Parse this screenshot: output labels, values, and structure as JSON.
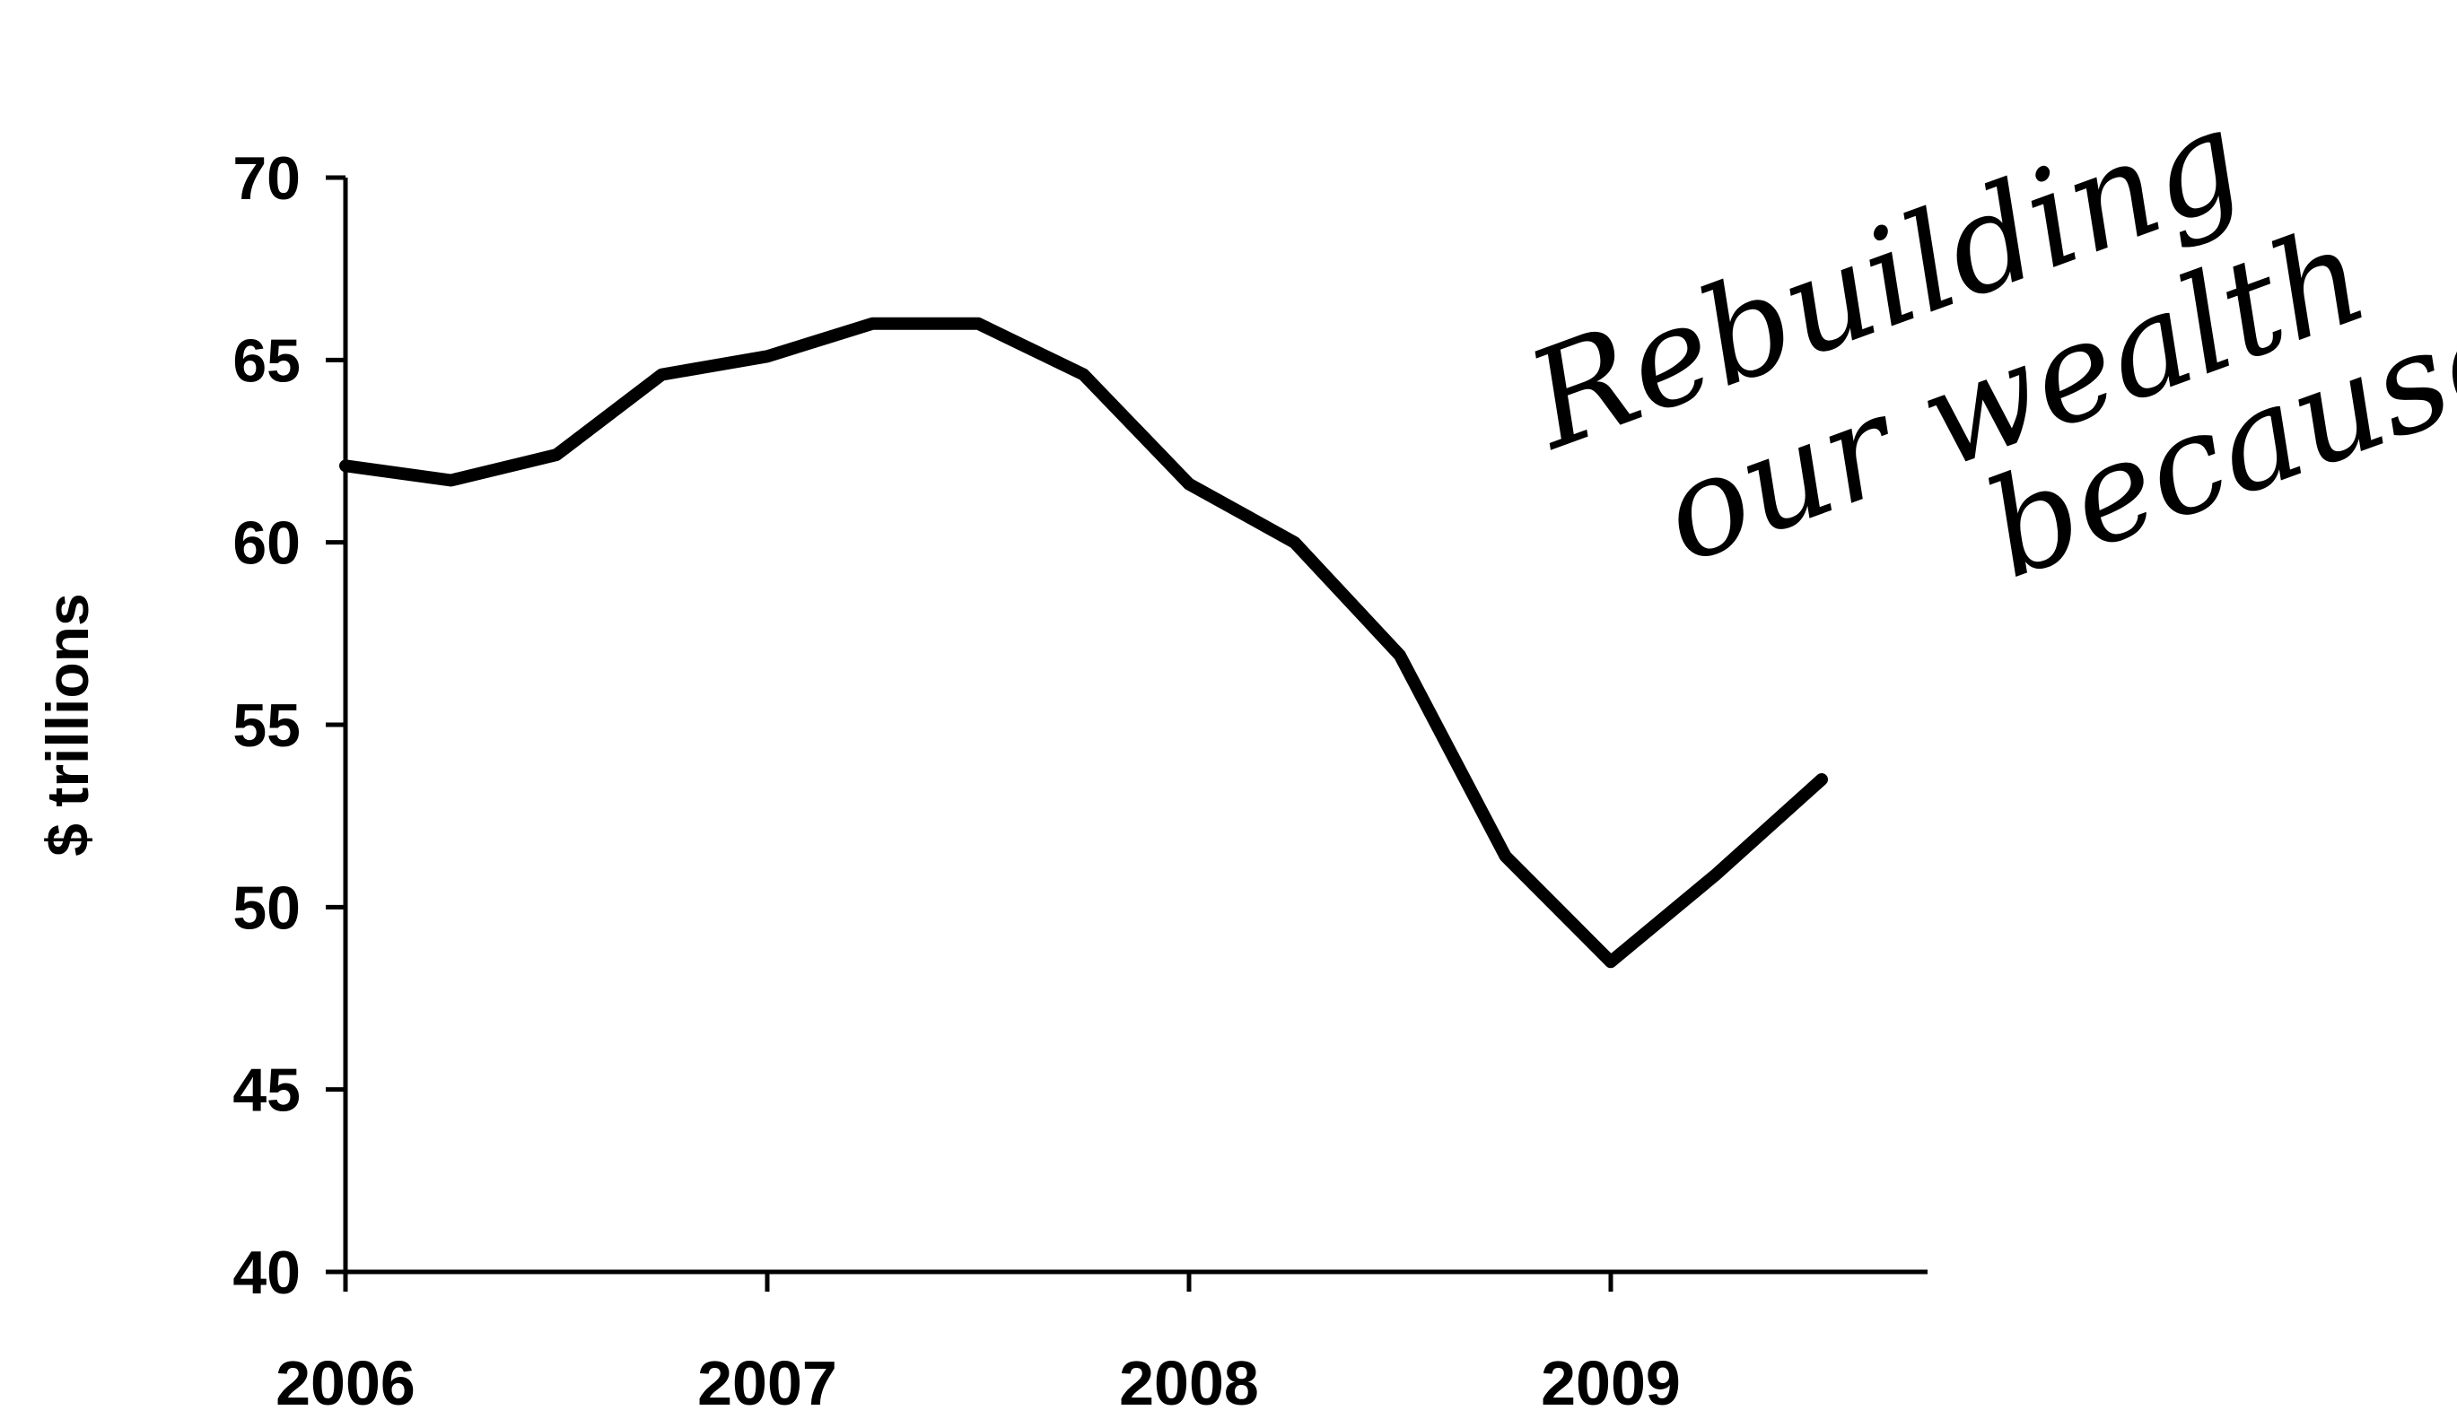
{
  "chart_data": {
    "type": "line",
    "ylabel": "$ trillions",
    "xlabel": "",
    "title": "",
    "ylim": [
      40,
      70
    ],
    "yticks": [
      40,
      45,
      50,
      55,
      60,
      65,
      70
    ],
    "xlim": [
      2006.0,
      2009.75
    ],
    "xticks": [
      "2006",
      "2007",
      "2008",
      "2009"
    ],
    "grid": false,
    "legend": "none",
    "line_color": "#000000",
    "series": [
      {
        "x": [
          2006.0,
          2006.25,
          2006.5,
          2006.75,
          2007.0,
          2007.25,
          2007.5,
          2007.75,
          2008.0,
          2008.25,
          2008.5,
          2008.75,
          2009.0,
          2009.25,
          2009.5
        ],
        "values": [
          62.1,
          61.7,
          62.4,
          64.6,
          65.1,
          66.0,
          66.0,
          64.6,
          61.6,
          60.0,
          56.9,
          51.4,
          48.5,
          50.9,
          53.5
        ]
      }
    ],
    "annotation": {
      "lines": [
        "Rebuilding",
        "our wealth",
        "because ..."
      ],
      "style": "handwritten"
    }
  }
}
